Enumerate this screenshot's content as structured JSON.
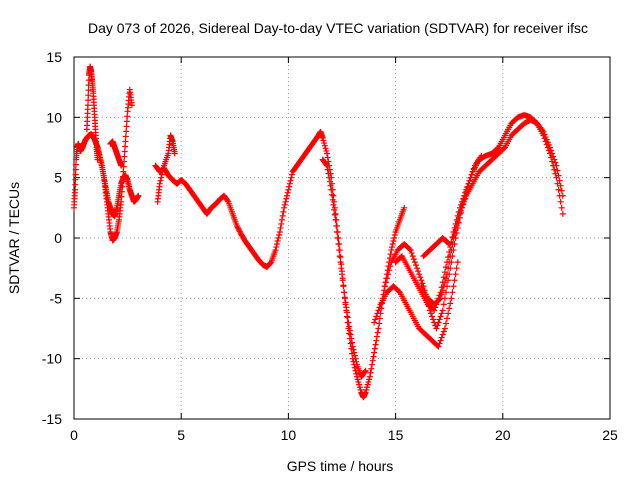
{
  "chart_data": {
    "type": "scatter",
    "title": "Day 073 of 2026, Sidereal Day-to-day VTEC variation (SDTVAR) for receiver ifsc",
    "xlabel": "GPS time / hours",
    "ylabel": "SDTVAR / TECUs",
    "xlim": [
      0,
      25
    ],
    "ylim": [
      -15,
      15
    ],
    "xticks": [
      0,
      5,
      10,
      15,
      20,
      25
    ],
    "yticks": [
      -15,
      -10,
      -5,
      0,
      5,
      10,
      15
    ],
    "grid": true,
    "marker": "+",
    "color": "#ff0000",
    "series": [
      {
        "x": [
          0.0,
          0.05,
          0.1,
          0.15,
          0.2,
          0.3,
          0.4,
          0.5,
          0.6,
          0.7,
          0.8,
          0.9,
          1.0,
          1.1,
          1.2,
          1.3,
          1.4,
          1.5,
          1.6,
          1.7,
          1.8,
          1.9,
          2.0,
          2.1,
          2.2,
          2.3,
          2.4,
          2.5,
          2.6,
          2.7,
          2.8,
          2.9,
          3.0
        ],
        "y": [
          2.5,
          4.0,
          6.5,
          7.5,
          7.8,
          7.2,
          7.5,
          8.0,
          8.3,
          8.5,
          8.6,
          8.4,
          8.0,
          7.5,
          6.8,
          6.0,
          5.0,
          4.0,
          3.0,
          2.5,
          2.0,
          1.8,
          2.5,
          3.5,
          4.5,
          5.0,
          5.2,
          4.8,
          4.0,
          3.5,
          3.0,
          3.2,
          3.5
        ]
      },
      {
        "x": [
          0.6,
          0.65,
          0.7,
          0.75,
          0.8,
          0.85,
          0.9,
          0.95,
          1.0,
          1.05,
          1.1
        ],
        "y": [
          9.0,
          11.0,
          13.5,
          14.2,
          13.8,
          13.0,
          12.0,
          10.5,
          9.0,
          7.5,
          6.5
        ]
      },
      {
        "x": [
          1.4,
          1.5,
          1.6,
          1.7,
          1.8,
          1.9,
          2.0,
          2.1,
          2.2,
          2.3,
          2.4,
          2.5,
          2.6,
          2.7
        ],
        "y": [
          5.0,
          3.5,
          2.0,
          0.5,
          -0.2,
          0.0,
          0.5,
          1.5,
          3.0,
          5.5,
          8.0,
          10.5,
          12.3,
          11.0
        ]
      },
      {
        "x": [
          1.7,
          1.8,
          1.9,
          2.0,
          2.1,
          2.2
        ],
        "y": [
          7.8,
          8.0,
          7.5,
          7.0,
          6.5,
          6.0
        ]
      },
      {
        "x": [
          3.9,
          4.0,
          4.2,
          4.4,
          4.5,
          4.6,
          4.7
        ],
        "y": [
          3.0,
          4.5,
          6.0,
          7.0,
          8.5,
          8.0,
          7.0
        ]
      },
      {
        "x": [
          3.8,
          4.0,
          4.2,
          4.4,
          4.6,
          4.8,
          5.0,
          5.2,
          5.4,
          5.6,
          5.8,
          6.0,
          6.2,
          6.4,
          6.6,
          6.8,
          7.0,
          7.2,
          7.4,
          7.6,
          7.8,
          8.0,
          8.2,
          8.4,
          8.6,
          8.8,
          9.0,
          9.2,
          9.4
        ],
        "y": [
          6.0,
          5.5,
          5.8,
          5.2,
          4.8,
          4.5,
          4.8,
          4.5,
          4.0,
          3.5,
          3.0,
          2.5,
          2.0,
          2.5,
          2.8,
          3.2,
          3.5,
          3.0,
          2.0,
          1.0,
          0.3,
          -0.3,
          -0.8,
          -1.3,
          -1.8,
          -2.2,
          -2.4,
          -2.0,
          -1.0
        ]
      },
      {
        "x": [
          9.4,
          9.6,
          9.8,
          10.0,
          10.2,
          10.4,
          10.6,
          10.8,
          11.0,
          11.2,
          11.4,
          11.5,
          11.6,
          11.8,
          12.0,
          12.2,
          12.4,
          12.6,
          12.8,
          13.0,
          13.2,
          13.4,
          13.5,
          13.6,
          13.8,
          14.0,
          14.2,
          14.4,
          14.6,
          14.8,
          15.0,
          15.2,
          15.4
        ],
        "y": [
          -1.0,
          0.5,
          2.5,
          4.0,
          5.5,
          6.0,
          6.5,
          7.0,
          7.5,
          8.0,
          8.5,
          8.8,
          8.3,
          7.0,
          5.0,
          2.0,
          -1.0,
          -4.5,
          -7.5,
          -10.0,
          -11.5,
          -12.8,
          -13.2,
          -12.8,
          -11.5,
          -9.5,
          -7.5,
          -5.0,
          -3.0,
          -1.0,
          0.5,
          1.5,
          2.5
        ]
      },
      {
        "x": [
          11.6,
          11.8,
          12.0,
          12.2,
          12.4,
          12.6,
          12.8,
          13.0,
          13.2,
          13.4,
          13.6
        ],
        "y": [
          6.5,
          6.0,
          4.0,
          1.5,
          -1.5,
          -4.5,
          -7.0,
          -9.0,
          -10.5,
          -11.5,
          -11.0
        ]
      },
      {
        "x": [
          14.0,
          14.3,
          14.6,
          14.9,
          15.2,
          15.5,
          15.8,
          16.1,
          16.4,
          16.7,
          17.0,
          17.3,
          17.6,
          17.9
        ],
        "y": [
          -7.0,
          -5.5,
          -4.5,
          -4.0,
          -4.5,
          -5.5,
          -6.5,
          -7.5,
          -8.0,
          -8.5,
          -9.0,
          -7.5,
          -5.0,
          -2.0
        ]
      },
      {
        "x": [
          14.5,
          14.8,
          15.1,
          15.4,
          15.7,
          16.0,
          16.3,
          16.6,
          16.9,
          17.2,
          17.5,
          17.8,
          18.1,
          18.4,
          18.7,
          19.0
        ],
        "y": [
          -4.0,
          -2.0,
          -1.0,
          -0.5,
          -1.0,
          -2.5,
          -4.0,
          -6.0,
          -7.5,
          -6.0,
          -3.0,
          0.0,
          2.5,
          4.5,
          6.0,
          6.8
        ]
      },
      {
        "x": [
          15.0,
          15.3,
          15.6,
          15.9,
          16.2,
          16.5,
          16.8,
          17.1,
          17.4,
          17.7,
          18.0,
          18.3,
          18.6,
          18.9,
          19.2,
          19.5,
          19.8,
          20.1,
          20.4,
          20.7,
          21.0,
          21.3,
          21.6,
          21.9,
          22.2,
          22.5,
          22.8
        ],
        "y": [
          -2.0,
          -1.5,
          -2.5,
          -3.5,
          -4.5,
          -5.5,
          -6.0,
          -4.5,
          -2.0,
          0.5,
          2.5,
          4.0,
          5.5,
          6.5,
          6.8,
          7.0,
          7.5,
          8.5,
          9.5,
          10.0,
          10.2,
          10.0,
          9.5,
          8.5,
          7.0,
          5.0,
          2.0
        ]
      },
      {
        "x": [
          16.2,
          16.5,
          16.8,
          17.1,
          17.4,
          17.7,
          18.0,
          18.3,
          18.6,
          18.9,
          19.2,
          19.5,
          19.8,
          20.1,
          20.4,
          20.7,
          21.0,
          21.3,
          21.6,
          21.9,
          22.2,
          22.5,
          22.8
        ],
        "y": [
          -4.0,
          -5.0,
          -5.5,
          -5.0,
          -3.0,
          0.0,
          2.0,
          3.5,
          4.5,
          5.5,
          6.0,
          6.5,
          7.0,
          7.5,
          8.5,
          9.0,
          9.5,
          9.8,
          9.5,
          8.8,
          7.5,
          6.0,
          3.5
        ]
      },
      {
        "x": [
          16.3,
          16.6,
          16.9,
          17.2,
          17.5
        ],
        "y": [
          -1.5,
          -1.0,
          -0.5,
          0.0,
          -0.5
        ]
      }
    ]
  }
}
